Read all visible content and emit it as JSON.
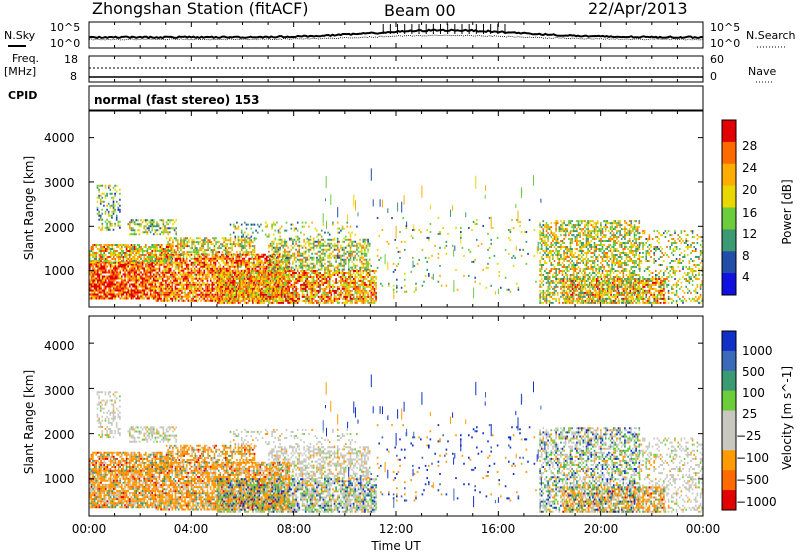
{
  "header": {
    "station": "Zhongshan Station (fitACF)",
    "beam": "Beam 00",
    "date": "22/Apr/2013"
  },
  "top_panel": {
    "left_label": "N.Sky",
    "right_label": "N.Search",
    "ticks_left": [
      "10^5",
      "10^0"
    ],
    "ticks_right": [
      "10^5",
      "10^0"
    ]
  },
  "freq_panel": {
    "left_label": "Freq.",
    "left_unit": "[MHz]",
    "ticks_left": [
      "18",
      "8"
    ],
    "right_label": "Nave",
    "ticks_right": [
      "60",
      "0"
    ],
    "cpid_label": "CPID",
    "mode_text": "normal (fast stereo) 153"
  },
  "chart_data": [
    {
      "type": "heatmap",
      "name": "power",
      "ylabel": "Slant Range [km]",
      "xlabel": "",
      "ylim": [
        180,
        4600
      ],
      "yticks": [
        1000,
        2000,
        3000,
        4000
      ],
      "colorbar": {
        "label": "Power [dB]",
        "ticks": [
          "28",
          "24",
          "20",
          "16",
          "12",
          "8",
          "4"
        ],
        "colors": [
          "#e20000",
          "#ff6a00",
          "#ffae00",
          "#e8d800",
          "#6ccc3c",
          "#3c9a72",
          "#204ea8",
          "#1010e0"
        ]
      }
    },
    {
      "type": "heatmap",
      "name": "velocity",
      "ylabel": "Slant Range [km]",
      "xlabel": "Time UT",
      "ylim": [
        180,
        4600
      ],
      "yticks": [
        1000,
        2000,
        3000,
        4000
      ],
      "xticks": [
        "00:00",
        "04:00",
        "08:00",
        "12:00",
        "16:00",
        "20:00",
        "00:00"
      ],
      "colorbar": {
        "label": "Velocity [m s^-1]",
        "ticks": [
          "1000",
          "500",
          "100",
          "25",
          "−25",
          "−100",
          "−500",
          "−1000"
        ],
        "colors": [
          "#1030c8",
          "#3a6ab8",
          "#3c9a72",
          "#6ccc3c",
          "#c8c8c0",
          "#c8c8c0",
          "#ff9a00",
          "#ff6a00",
          "#e20000"
        ]
      }
    }
  ]
}
